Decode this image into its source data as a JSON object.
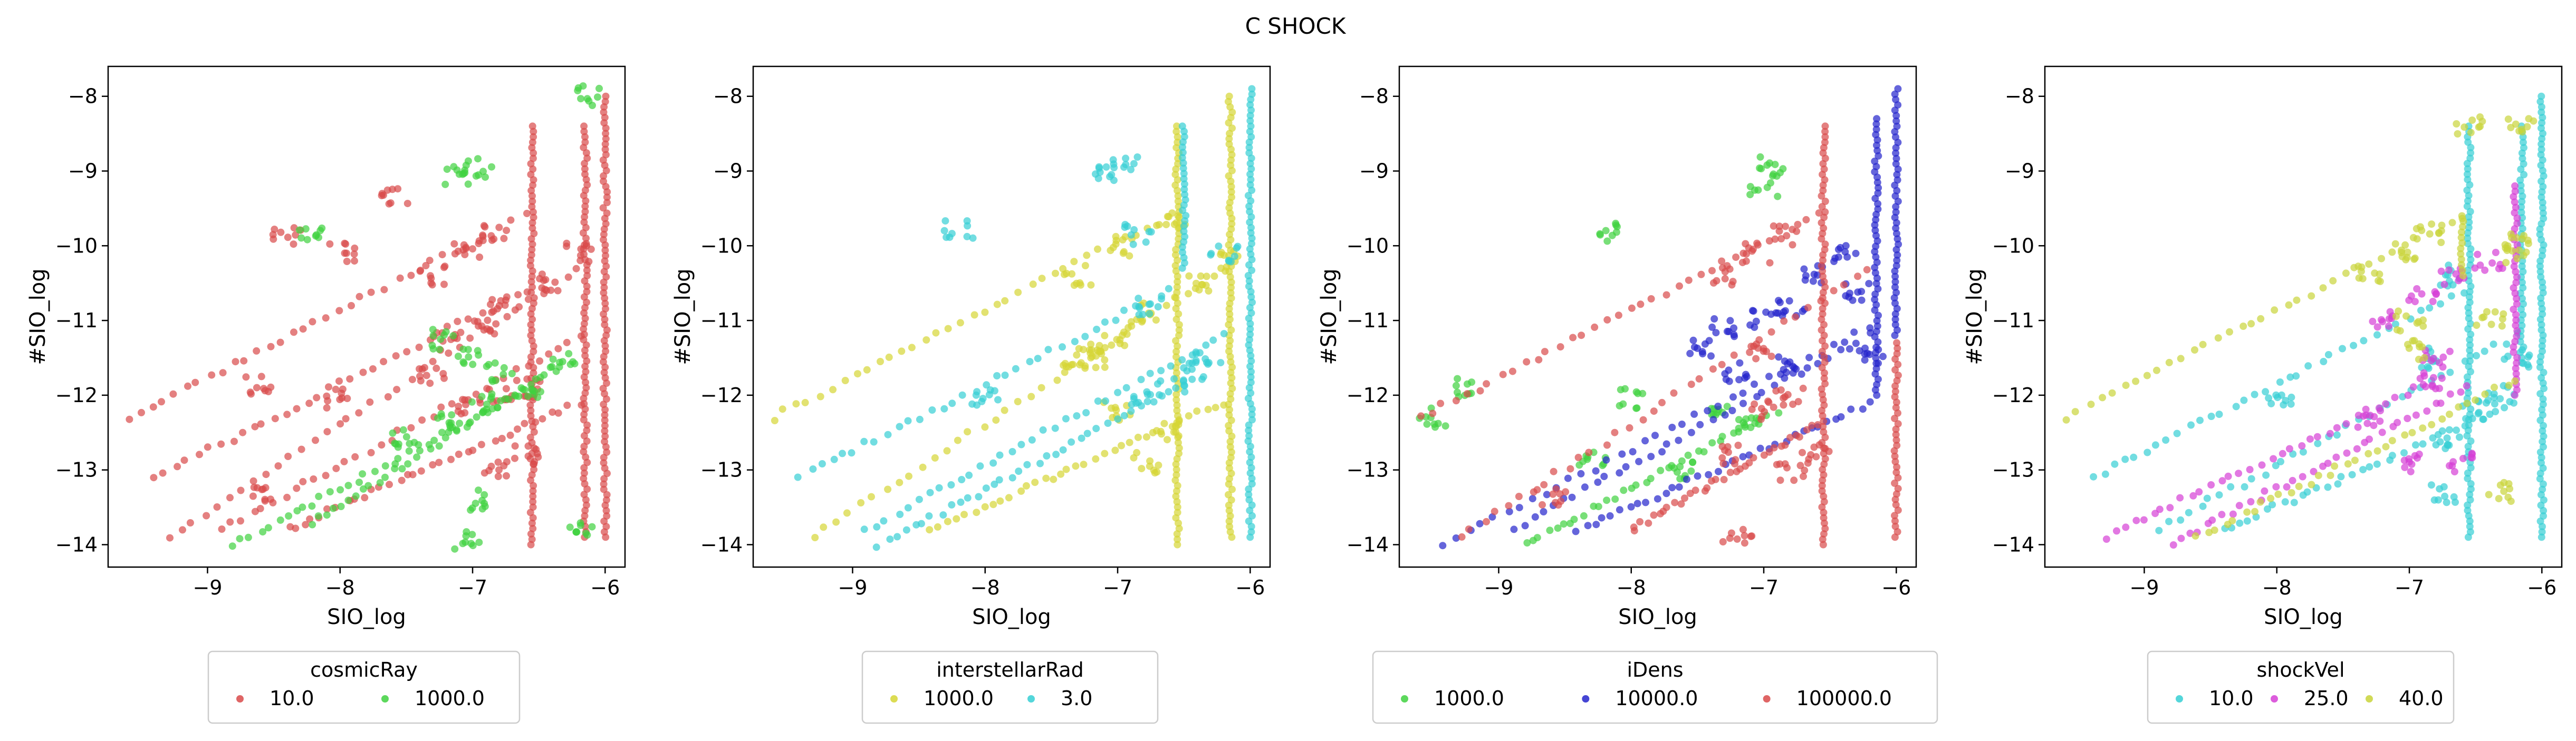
{
  "figure": {
    "title": "C SHOCK"
  },
  "chart_data": [
    {
      "type": "scatter",
      "xlabel": "SIO_log",
      "ylabel": "#SIO_log",
      "xlim": [
        -9.75,
        -5.85
      ],
      "ylim": [
        -14.3,
        -7.6
      ],
      "xticks": [
        -9,
        -8,
        -7,
        -6
      ],
      "yticks": [
        -14,
        -13,
        -12,
        -11,
        -10,
        -9,
        -8
      ],
      "legend": {
        "title": "cosmicRay",
        "position": "below",
        "entries": [
          "10.0",
          "1000.0"
        ]
      },
      "series": [
        {
          "name": "10.0",
          "color": "#d94a4a",
          "diagonals": [
            [
              [
                -9.6,
                -12.3
              ],
              [
                -6.6,
                -9.6
              ]
            ],
            [
              [
                -9.4,
                -13.1
              ],
              [
                -6.6,
                -10.6
              ]
            ],
            [
              [
                -9.3,
                -13.9
              ],
              [
                -6.2,
                -10.3
              ]
            ],
            [
              [
                -8.9,
                -13.8
              ],
              [
                -6.2,
                -11.2
              ]
            ],
            [
              [
                -8.4,
                -13.8
              ],
              [
                -6.2,
                -12.1
              ]
            ]
          ],
          "clusters": [
            [
              -7.3,
              -10.4
            ],
            [
              -7.05,
              -10.1
            ],
            [
              -6.85,
              -9.85
            ],
            [
              -7.2,
              -11.3
            ],
            [
              -6.9,
              -11.1
            ],
            [
              -6.75,
              -10.8
            ],
            [
              -6.4,
              -10.5
            ],
            [
              -6.2,
              -10.1
            ],
            [
              -7.0,
              -12.2
            ],
            [
              -6.8,
              -12.0
            ],
            [
              -6.6,
              -11.9
            ],
            [
              -6.8,
              -13.0
            ],
            [
              -6.6,
              -12.8
            ],
            [
              -8.0,
              -12.05
            ],
            [
              -8.6,
              -11.85
            ],
            [
              -8.6,
              -13.35
            ],
            [
              -7.3,
              -11.7
            ],
            [
              -8.0,
              -10.1
            ],
            [
              -8.4,
              -9.9
            ],
            [
              -7.6,
              -9.3
            ]
          ],
          "verticals": [
            [
              -6.55,
              -14.0,
              -8.4
            ],
            [
              -6.15,
              -13.9,
              -8.4
            ],
            [
              -6.0,
              -13.9,
              -8.0
            ]
          ]
        },
        {
          "name": "1000.0",
          "color": "#3fd13f",
          "diagonals": [
            [
              [
                -8.8,
                -14.0
              ],
              [
                -6.55,
                -11.9
              ]
            ],
            [
              [
                -8.2,
                -13.7
              ],
              [
                -6.35,
                -11.6
              ]
            ]
          ],
          "clusters": [
            [
              -7.0,
              -11.5
            ],
            [
              -6.8,
              -11.7
            ],
            [
              -6.55,
              -11.9
            ],
            [
              -6.3,
              -11.55
            ],
            [
              -7.2,
              -12.3
            ],
            [
              -6.9,
              -12.1
            ],
            [
              -7.5,
              -12.6
            ],
            [
              -7.0,
              -13.4
            ],
            [
              -7.05,
              -13.95
            ],
            [
              -6.95,
              -8.95
            ],
            [
              -7.1,
              -9.05
            ],
            [
              -8.2,
              -9.8
            ],
            [
              -7.2,
              -11.25
            ],
            [
              -6.15,
              -8.0
            ],
            [
              -6.2,
              -13.8
            ]
          ],
          "verticals": []
        }
      ]
    },
    {
      "type": "scatter",
      "xlabel": "SIO_log",
      "ylabel": "#SIO_log",
      "xlim": [
        -9.75,
        -5.85
      ],
      "ylim": [
        -14.3,
        -7.6
      ],
      "xticks": [
        -9,
        -8,
        -7,
        -6
      ],
      "yticks": [
        -14,
        -13,
        -12,
        -11,
        -10,
        -9,
        -8
      ],
      "legend": {
        "title": "interstellarRad",
        "position": "below",
        "entries": [
          "1000.0",
          "3.0"
        ]
      },
      "series": [
        {
          "name": "1000.0",
          "color": "#d6d635",
          "diagonals": [
            [
              [
                -9.6,
                -12.3
              ],
              [
                -6.6,
                -9.6
              ]
            ],
            [
              [
                -9.3,
                -13.9
              ],
              [
                -6.2,
                -10.3
              ]
            ],
            [
              [
                -8.4,
                -13.8
              ],
              [
                -6.2,
                -12.1
              ]
            ]
          ],
          "clusters": [
            [
              -7.3,
              -10.4
            ],
            [
              -7.0,
              -10.0
            ],
            [
              -7.2,
              -11.4
            ],
            [
              -7.0,
              -11.2
            ],
            [
              -6.8,
              -10.9
            ],
            [
              -6.4,
              -10.5
            ],
            [
              -7.2,
              -11.5
            ],
            [
              -7.0,
              -12.2
            ],
            [
              -6.8,
              -12.9
            ],
            [
              -6.6,
              -12.5
            ],
            [
              -6.2,
              -10.2
            ],
            [
              -6.6,
              -9.7
            ],
            [
              -7.3,
              -11.6
            ]
          ],
          "verticals": [
            [
              -6.55,
              -14.0,
              -8.4
            ],
            [
              -6.15,
              -13.9,
              -8.0
            ]
          ]
        },
        {
          "name": "3.0",
          "color": "#36cfd4",
          "diagonals": [
            [
              [
                -9.4,
                -13.1
              ],
              [
                -6.6,
                -10.6
              ]
            ],
            [
              [
                -8.9,
                -13.8
              ],
              [
                -6.2,
                -11.2
              ]
            ],
            [
              [
                -8.8,
                -14.0
              ],
              [
                -6.55,
                -11.9
              ]
            ]
          ],
          "clusters": [
            [
              -6.85,
              -9.85
            ],
            [
              -6.75,
              -10.8
            ],
            [
              -6.6,
              -11.9
            ],
            [
              -6.8,
              -12.0
            ],
            [
              -6.4,
              -11.7
            ],
            [
              -8.0,
              -12.05
            ],
            [
              -7.1,
              -9.05
            ],
            [
              -6.95,
              -8.95
            ],
            [
              -8.2,
              -9.8
            ],
            [
              -6.2,
              -10.1
            ],
            [
              -6.3,
              -11.5
            ]
          ],
          "verticals": [
            [
              -6.0,
              -13.9,
              -7.9
            ],
            [
              -6.5,
              -10.3,
              -8.4
            ]
          ]
        }
      ]
    },
    {
      "type": "scatter",
      "xlabel": "SIO_log",
      "ylabel": "#SIO_log",
      "xlim": [
        -9.75,
        -5.85
      ],
      "ylim": [
        -14.3,
        -7.6
      ],
      "xticks": [
        -9,
        -8,
        -7,
        -6
      ],
      "yticks": [
        -14,
        -13,
        -12,
        -11,
        -10,
        -9,
        -8
      ],
      "legend": {
        "title": "iDens",
        "position": "below",
        "entries": [
          "1000.0",
          "10000.0",
          "100000.0"
        ]
      },
      "series": [
        {
          "name": "1000.0",
          "color": "#3fd13f",
          "diagonals": [
            [
              [
                -8.8,
                -14.0
              ],
              [
                -6.9,
                -12.2
              ]
            ]
          ],
          "clusters": [
            [
              -7.3,
              -12.2
            ],
            [
              -7.1,
              -12.4
            ],
            [
              -7.0,
              -9.2
            ],
            [
              -6.95,
              -8.95
            ],
            [
              -8.0,
              -12.05
            ],
            [
              -8.3,
              -12.8
            ],
            [
              -7.6,
              -13.0
            ],
            [
              -8.2,
              -9.8
            ],
            [
              -9.5,
              -12.3
            ],
            [
              -9.3,
              -11.9
            ]
          ],
          "verticals": []
        },
        {
          "name": "10000.0",
          "color": "#2424cc",
          "diagonals": [
            [
              [
                -9.4,
                -14.0
              ],
              [
                -6.2,
                -11.1
              ]
            ],
            [
              [
                -8.9,
                -13.8
              ],
              [
                -6.2,
                -11.2
              ]
            ],
            [
              [
                -8.4,
                -13.8
              ],
              [
                -6.2,
                -12.1
              ]
            ]
          ],
          "clusters": [
            [
              -7.3,
              -11.1
            ],
            [
              -7.0,
              -11.0
            ],
            [
              -6.8,
              -10.8
            ],
            [
              -6.6,
              -10.4
            ],
            [
              -6.4,
              -10.1
            ],
            [
              -7.2,
              -11.7
            ],
            [
              -6.3,
              -10.6
            ],
            [
              -6.2,
              -11.5
            ],
            [
              -6.8,
              -11.6
            ],
            [
              -7.5,
              -11.4
            ]
          ],
          "verticals": [
            [
              -6.0,
              -11.2,
              -7.9
            ],
            [
              -6.15,
              -12.0,
              -8.3
            ]
          ]
        },
        {
          "name": "100000.0",
          "color": "#d94a4a",
          "diagonals": [
            [
              [
                -9.6,
                -12.3
              ],
              [
                -6.6,
                -9.6
              ]
            ],
            [
              [
                -9.3,
                -13.9
              ],
              [
                -6.2,
                -10.3
              ]
            ],
            [
              [
                -8.0,
                -13.8
              ],
              [
                -6.6,
                -12.4
              ]
            ]
          ],
          "clusters": [
            [
              -7.3,
              -10.4
            ],
            [
              -7.05,
              -10.1
            ],
            [
              -6.85,
              -9.85
            ],
            [
              -7.0,
              -11.4
            ],
            [
              -7.0,
              -12.2
            ],
            [
              -6.8,
              -12.0
            ],
            [
              -6.8,
              -13.0
            ],
            [
              -6.6,
              -12.8
            ],
            [
              -8.6,
              -13.35
            ],
            [
              -7.3,
              -12.8
            ],
            [
              -7.2,
              -13.9
            ]
          ],
          "verticals": [
            [
              -6.55,
              -14.0,
              -8.4
            ],
            [
              -6.0,
              -13.9,
              -11.3
            ]
          ]
        }
      ]
    },
    {
      "type": "scatter",
      "xlabel": "SIO_log",
      "ylabel": "#SIO_log",
      "xlim": [
        -9.75,
        -5.85
      ],
      "ylim": [
        -14.3,
        -7.6
      ],
      "xticks": [
        -9,
        -8,
        -7,
        -6
      ],
      "yticks": [
        -14,
        -13,
        -12,
        -11,
        -10,
        -9,
        -8
      ],
      "legend": {
        "title": "shockVel",
        "position": "below",
        "entries": [
          "10.0",
          "25.0",
          "40.0"
        ]
      },
      "series": [
        {
          "name": "10.0",
          "color": "#36cfd4",
          "diagonals": [
            [
              [
                -9.4,
                -13.1
              ],
              [
                -6.6,
                -10.6
              ]
            ],
            [
              [
                -8.9,
                -13.8
              ],
              [
                -6.2,
                -11.2
              ]
            ],
            [
              [
                -8.4,
                -13.8
              ],
              [
                -6.2,
                -12.1
              ]
            ]
          ],
          "clusters": [
            [
              -6.85,
              -11.5
            ],
            [
              -6.7,
              -12.6
            ],
            [
              -6.5,
              -12.2
            ],
            [
              -6.3,
              -12.0
            ],
            [
              -8.0,
              -12.05
            ],
            [
              -6.7,
              -10.4
            ],
            [
              -6.2,
              -11.5
            ],
            [
              -6.75,
              -13.3
            ]
          ],
          "verticals": [
            [
              -6.55,
              -13.9,
              -8.4
            ],
            [
              -6.0,
              -13.9,
              -8.0
            ],
            [
              -6.15,
              -11.5,
              -8.4
            ]
          ]
        },
        {
          "name": "25.0",
          "color": "#d63fd6",
          "diagonals": [
            [
              [
                -9.3,
                -13.9
              ],
              [
                -6.8,
                -11.8
              ]
            ],
            [
              [
                -8.8,
                -14.0
              ],
              [
                -6.55,
                -11.9
              ]
            ]
          ],
          "clusters": [
            [
              -6.85,
              -11.8
            ],
            [
              -6.8,
              -11.5
            ],
            [
              -7.2,
              -11.0
            ],
            [
              -6.9,
              -10.7
            ],
            [
              -6.65,
              -10.4
            ],
            [
              -6.4,
              -10.2
            ],
            [
              -7.3,
              -12.3
            ],
            [
              -7.0,
              -12.9
            ],
            [
              -6.6,
              -12.9
            ]
          ],
          "verticals": [
            [
              -6.2,
              -12.0,
              -9.2
            ]
          ]
        },
        {
          "name": "40.0",
          "color": "#c9d43a",
          "diagonals": [
            [
              [
                -9.6,
                -12.3
              ],
              [
                -6.6,
                -9.6
              ]
            ],
            [
              [
                -8.6,
                -13.9
              ],
              [
                -6.2,
                -11.8
              ]
            ]
          ],
          "clusters": [
            [
              -7.3,
              -10.4
            ],
            [
              -7.05,
              -10.1
            ],
            [
              -6.85,
              -9.85
            ],
            [
              -7.0,
              -11.0
            ],
            [
              -6.95,
              -11.4
            ],
            [
              -6.4,
              -11.0
            ],
            [
              -6.2,
              -10.1
            ],
            [
              -6.55,
              -8.4
            ],
            [
              -6.15,
              -8.4
            ],
            [
              -6.3,
              -13.3
            ],
            [
              -6.2,
              -9.9
            ]
          ],
          "verticals": [
            [
              -6.6,
              -10.4,
              -9.6
            ]
          ]
        }
      ]
    }
  ]
}
